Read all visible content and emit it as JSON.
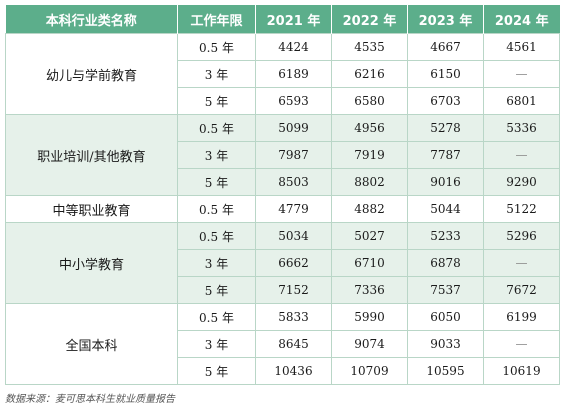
{
  "table": {
    "headers": [
      "本科行业类名称",
      "工作年限",
      "2021 年",
      "2022 年",
      "2023 年",
      "2024 年"
    ],
    "groups": [
      {
        "name": "幼儿与学前教育",
        "rows": [
          {
            "tenure": "0.5 年",
            "values": [
              "4424",
              "4535",
              "4667",
              "4561"
            ]
          },
          {
            "tenure": "3 年",
            "values": [
              "6189",
              "6216",
              "6150",
              "—"
            ]
          },
          {
            "tenure": "5 年",
            "values": [
              "6593",
              "6580",
              "6703",
              "6801"
            ]
          }
        ]
      },
      {
        "name": "职业培训/其他教育",
        "rows": [
          {
            "tenure": "0.5 年",
            "values": [
              "5099",
              "4956",
              "5278",
              "5336"
            ]
          },
          {
            "tenure": "3 年",
            "values": [
              "7987",
              "7919",
              "7787",
              "—"
            ]
          },
          {
            "tenure": "5 年",
            "values": [
              "8503",
              "8802",
              "9016",
              "9290"
            ]
          }
        ]
      },
      {
        "name": "中等职业教育",
        "rows": [
          {
            "tenure": "0.5 年",
            "values": [
              "4779",
              "4882",
              "5044",
              "5122"
            ]
          }
        ]
      },
      {
        "name": "中小学教育",
        "rows": [
          {
            "tenure": "0.5 年",
            "values": [
              "5034",
              "5027",
              "5233",
              "5296"
            ]
          },
          {
            "tenure": "3 年",
            "values": [
              "6662",
              "6710",
              "6878",
              "—"
            ]
          },
          {
            "tenure": "5 年",
            "values": [
              "7152",
              "7336",
              "7537",
              "7672"
            ]
          }
        ]
      },
      {
        "name": "全国本科",
        "rows": [
          {
            "tenure": "0.5 年",
            "values": [
              "5833",
              "5990",
              "6050",
              "6199"
            ]
          },
          {
            "tenure": "3 年",
            "values": [
              "8645",
              "9074",
              "9033",
              "—"
            ]
          },
          {
            "tenure": "5 年",
            "values": [
              "10436",
              "10709",
              "10595",
              "10619"
            ]
          }
        ]
      }
    ]
  },
  "source": "数据来源：麦可思本科生就业质量报告",
  "colors": {
    "header": "#5cae8b",
    "shade": "#e6f1ea",
    "border": "#b9d6c7"
  }
}
